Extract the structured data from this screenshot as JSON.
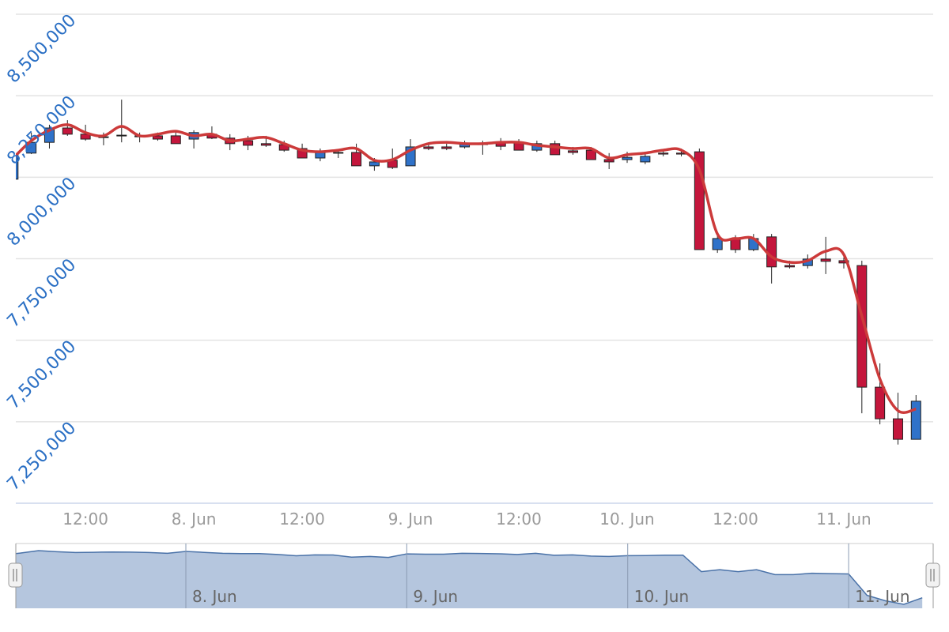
{
  "chart_data": {
    "type": "candlestick",
    "categories": [
      null,
      null,
      null,
      null,
      "12:00",
      null,
      null,
      null,
      null,
      null,
      "8. Jun",
      null,
      null,
      null,
      null,
      null,
      "12:00",
      null,
      null,
      null,
      null,
      null,
      "9. Jun",
      null,
      null,
      null,
      null,
      null,
      "12:00",
      null,
      null,
      null,
      null,
      null,
      "10. Jun",
      null,
      null,
      null,
      null,
      null,
      "12:00",
      null,
      null,
      null,
      null,
      null,
      "11. Jun",
      null,
      null,
      null,
      null
    ],
    "open": [
      7994000,
      8074000,
      8107000,
      8151000,
      8132000,
      8124000,
      8129000,
      8127000,
      8127000,
      8127000,
      8117000,
      8132000,
      8120000,
      8112000,
      8103000,
      8100000,
      8088000,
      8059000,
      8076000,
      8076000,
      8035000,
      8052000,
      8035000,
      8093000,
      8093000,
      8093000,
      8103000,
      8107000,
      8107000,
      8083000,
      8103000,
      8081000,
      8083000,
      8054000,
      8054000,
      8047000,
      8074000,
      8074000,
      8078000,
      7778000,
      7812000,
      7778000,
      7817000,
      7729000,
      7729000,
      7749000,
      7744000,
      7729000,
      7356000,
      7259000,
      7196000
    ],
    "high": [
      8083000,
      8137000,
      8161000,
      8175000,
      8161000,
      8137000,
      8238000,
      8137000,
      8137000,
      8141000,
      8144000,
      8156000,
      8132000,
      8127000,
      8127000,
      8112000,
      8103000,
      8088000,
      8083000,
      8103000,
      8059000,
      8088000,
      8117000,
      8107000,
      8103000,
      8112000,
      8112000,
      8120000,
      8117000,
      8112000,
      8112000,
      8093000,
      8093000,
      8074000,
      8078000,
      8078000,
      8083000,
      8088000,
      8088000,
      7826000,
      7822000,
      7826000,
      7826000,
      7744000,
      7763000,
      7817000,
      7754000,
      7744000,
      7429000,
      7339000,
      7332000
    ],
    "low": [
      7994000,
      8071000,
      8088000,
      8127000,
      8112000,
      8098000,
      8107000,
      8107000,
      8112000,
      8103000,
      8088000,
      8117000,
      8083000,
      8083000,
      8093000,
      8078000,
      8059000,
      8049000,
      8059000,
      8035000,
      8020000,
      8025000,
      8035000,
      8083000,
      8083000,
      8088000,
      8069000,
      8083000,
      8083000,
      8078000,
      8069000,
      8069000,
      8054000,
      8025000,
      8044000,
      8040000,
      8064000,
      8064000,
      7778000,
      7768000,
      7768000,
      7773000,
      7674000,
      7720000,
      7720000,
      7703000,
      7720000,
      7276000,
      7242000,
      7180000,
      7196000
    ],
    "close": [
      8071000,
      8107000,
      8151000,
      8132000,
      8117000,
      8122000,
      8127000,
      8124000,
      8117000,
      8103000,
      8137000,
      8120000,
      8103000,
      8098000,
      8098000,
      8083000,
      8059000,
      8076000,
      8074000,
      8035000,
      8047000,
      8030000,
      8093000,
      8088000,
      8088000,
      8103000,
      8100000,
      8095000,
      8083000,
      8103000,
      8069000,
      8076000,
      8054000,
      8047000,
      8061000,
      8064000,
      8071000,
      8071000,
      7778000,
      7812000,
      7778000,
      7812000,
      7725000,
      7725000,
      7749000,
      7742000,
      7737000,
      7356000,
      7259000,
      7196000,
      7313000
    ],
    "up_color": "#2f72c9",
    "down_color": "#c4163c",
    "overlay": {
      "type": "line",
      "color": "#cc3a3a",
      "values": [
        8059000,
        8112000,
        8144000,
        8161000,
        8137000,
        8127000,
        8156000,
        8127000,
        8132000,
        8141000,
        8127000,
        8132000,
        8112000,
        8117000,
        8122000,
        8103000,
        8083000,
        8078000,
        8083000,
        8088000,
        8052000,
        8054000,
        8083000,
        8103000,
        8107000,
        8103000,
        8103000,
        8107000,
        8107000,
        8098000,
        8093000,
        8088000,
        8088000,
        8059000,
        8069000,
        8074000,
        8083000,
        8083000,
        8023000,
        7826000,
        7812000,
        7812000,
        7756000,
        7739000,
        7744000,
        7773000,
        7763000,
        7574000,
        7381000,
        7284000,
        7289000
      ]
    },
    "ylim": [
      7000000,
      8500000
    ],
    "yticks": [
      {
        "value": 7250000,
        "label": "7,250,000"
      },
      {
        "value": 7500000,
        "label": "7,500,000"
      },
      {
        "value": 7750000,
        "label": "7,750,000"
      },
      {
        "value": 8000000,
        "label": "8,000,000"
      },
      {
        "value": 8250000,
        "label": "8,250,000"
      },
      {
        "value": 8500000,
        "label": "8,500,000"
      }
    ],
    "grid": true,
    "navigator": {
      "color": "#b5c6de",
      "line_color": "#4a72a8",
      "categories": [
        null,
        null,
        null,
        null,
        null,
        null,
        null,
        null,
        null,
        null,
        "8. Jun",
        null,
        null,
        null,
        null,
        null,
        null,
        null,
        null,
        null,
        null,
        null,
        "9. Jun",
        null,
        null,
        null,
        null,
        null,
        null,
        null,
        null,
        null,
        null,
        null,
        "10. Jun",
        null,
        null,
        null,
        null,
        null,
        null,
        null,
        null,
        null,
        null,
        null,
        "11. Jun",
        null,
        null,
        null,
        null
      ]
    }
  }
}
